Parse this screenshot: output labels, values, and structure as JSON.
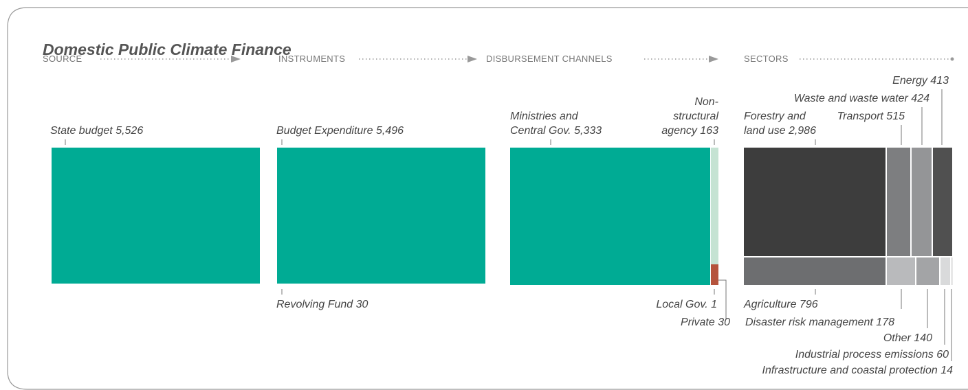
{
  "title": "Domestic Public Climate Finance",
  "stages": [
    "SOURCE",
    "INSTRUMENTS",
    "DISBURSEMENT CHANNELS",
    "SECTORS"
  ],
  "nodes": [
    {
      "lines": [
        "State budget 5,526"
      ]
    },
    {
      "lines": [
        "Budget Expenditure 5,496"
      ]
    },
    {
      "lines": [
        "Revolving Fund 30"
      ]
    },
    {
      "lines": [
        "Ministries and",
        "Central Gov. 5,333"
      ]
    },
    {
      "lines": [
        "Non-",
        "structural",
        "agency 163"
      ]
    },
    {
      "lines": [
        "Local Gov. 1"
      ]
    },
    {
      "lines": [
        "Private 30"
      ]
    },
    {
      "lines": [
        "Forestry and",
        "land use 2,986"
      ]
    },
    {
      "lines": [
        "Transport 515"
      ]
    },
    {
      "lines": [
        "Waste and waste water 424"
      ]
    },
    {
      "lines": [
        "Energy 413"
      ]
    },
    {
      "lines": [
        "Agriculture 796"
      ]
    },
    {
      "lines": [
        "Disaster risk management 178"
      ]
    },
    {
      "lines": [
        "Other 140"
      ]
    },
    {
      "lines": [
        "Industrial process emissions 60"
      ]
    },
    {
      "lines": [
        "Infrastructure and coastal protection 14"
      ]
    }
  ]
}
